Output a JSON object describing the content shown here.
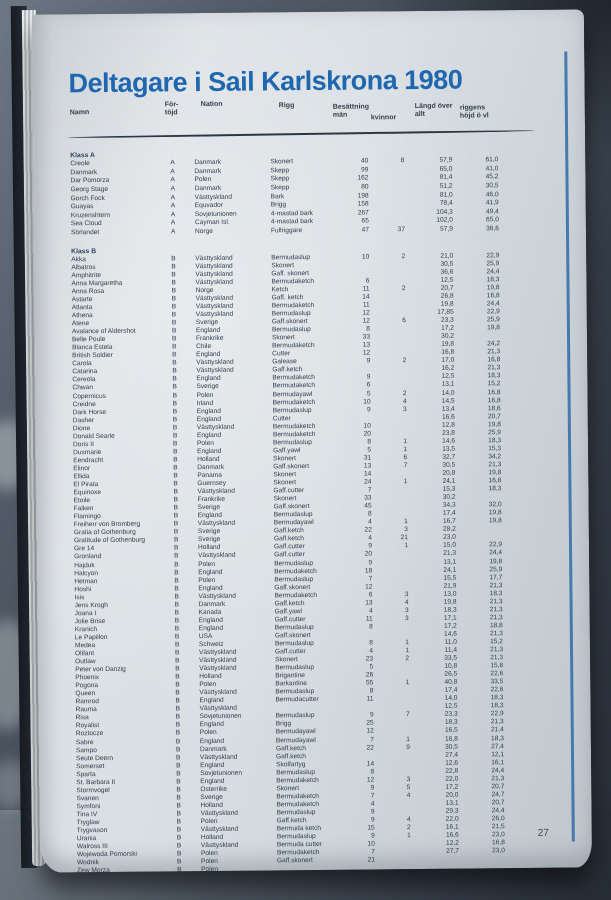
{
  "photo": {
    "background_color": "#434c57",
    "page_color": "#d8dee2",
    "accent_color": "#4879ad",
    "title_color": "#1f67af"
  },
  "page": {
    "title": "Deltagare i Sail Karlskrona 1980",
    "page_number": "27",
    "table": {
      "headers": {
        "namn": "Namn",
        "fortojd": "För-\ntöjd",
        "nation": "Nation",
        "rigg": "Rigg",
        "besattning": "Besättning\nmän",
        "kvinnor": "kvinnor",
        "langd": "Längd över\nallt",
        "riggens": "riggens\nhöjd ö vl"
      },
      "sections": [
        {
          "label": "Klass A",
          "rows": [
            [
              "Creole",
              "A",
              "Danmark",
              "Skonert",
              "40",
              "8",
              "57,9",
              "61,0"
            ],
            [
              "Danmark",
              "A",
              "Danmark",
              "Skepp",
              "99",
              "",
              "65,0",
              "41,0"
            ],
            [
              "Dar Pomorza",
              "A",
              "Polen",
              "Skepp",
              "162",
              "",
              "81,4",
              "45,2"
            ],
            [
              "Georg Stage",
              "A",
              "Danmark",
              "Skepp",
              "80",
              "",
              "51,2",
              "30,5"
            ],
            [
              "Gorch Fock",
              "A",
              "Västtyskland",
              "Bark",
              "198",
              "",
              "81,0",
              "46,0"
            ],
            [
              "Guayas",
              "A",
              "Equvador",
              "Brigg",
              "158",
              "",
              "78,4",
              "41,9"
            ],
            [
              "Kruzenshtern",
              "A",
              "Sovjetunionen",
              "4-mastad bark",
              "267",
              "",
              "104,3",
              "49,4"
            ],
            [
              "Sea Cloud",
              "A",
              "Cayman Isl.",
              "4-mastad bark",
              "65",
              "",
              "102,0",
              "65,0"
            ],
            [
              "Sörlandet",
              "A",
              "Norge",
              "Fullriggare",
              "47",
              "37",
              "57,9",
              "36,6"
            ]
          ]
        },
        {
          "label": "Klass B",
          "rows": [
            [
              "Akka",
              "B",
              "Västtyskland",
              "Bermudaslup",
              "10",
              "2",
              "21,0",
              "22,9"
            ],
            [
              "Albatros",
              "B",
              "Västtyskland",
              "Skonert",
              "",
              "",
              "30,5",
              "25,9"
            ],
            [
              "Amphitrite",
              "B",
              "Västtyskland",
              "Gaff. skonert",
              "",
              "",
              "36,6",
              "24,4"
            ],
            [
              "Anna Margaretha",
              "B",
              "Västtyskland",
              "Bermudaketch",
              "6",
              "",
              "12,5",
              "18,3"
            ],
            [
              "Anna Rosa",
              "B",
              "Norge",
              "Ketch",
              "11",
              "2",
              "20,7",
              "19,8"
            ],
            [
              "Astarte",
              "B",
              "Västtyskland",
              "Gaff. ketch",
              "14",
              "",
              "26,8",
              "16,8"
            ],
            [
              "Atlanta",
              "B",
              "Västtyskland",
              "Bermudaketch",
              "11",
              "",
              "19,8",
              "24,4"
            ],
            [
              "Athena",
              "B",
              "Västtyskland",
              "Bermudaslup",
              "12",
              "",
              "17,85",
              "22,9"
            ],
            [
              "Atene",
              "B",
              "Sverige",
              "Gaff.skonert",
              "12",
              "6",
              "23,3",
              "25,9"
            ],
            [
              "Avalance of Aldershot",
              "B",
              "England",
              "Bermudaslup",
              "8",
              "",
              "17,2",
              "19,8"
            ],
            [
              "Belle Poule",
              "B",
              "Frankrike",
              "Skonert",
              "33",
              "",
              "30,2",
              ""
            ],
            [
              "Blanca Estela",
              "B",
              "Chile",
              "Bermudaketch",
              "13",
              "",
              "19,8",
              "24,2"
            ],
            [
              "British Soldier",
              "B",
              "England",
              "Cutter",
              "12",
              "",
              "16,8",
              "21,3"
            ],
            [
              "Carola",
              "B",
              "Västtyskland",
              "Galease",
              "9",
              "2",
              "17,0",
              "16,8"
            ],
            [
              "Catarina",
              "B",
              "Västtyskland",
              "Gaff.ketch",
              "",
              "",
              "16,2",
              "21,3"
            ],
            [
              "Cereola",
              "B",
              "England",
              "Bermudaketch",
              "9",
              "",
              "12,5",
              "18,3"
            ],
            [
              "Chwan",
              "B",
              "Sverige",
              "Bermudaketch",
              "6",
              "",
              "13,1",
              "15,2"
            ],
            [
              "Copernicus",
              "B",
              "Polen",
              "Bermudayawl",
              "5",
              "2",
              "14,0",
              "16,8"
            ],
            [
              "Creidne",
              "B",
              "Irland",
              "Bermudaketch",
              "10",
              "4",
              "14,5",
              "16,8"
            ],
            [
              "Dark Horse",
              "B",
              "England",
              "Bermudaslup",
              "9",
              "3",
              "13,4",
              "18,6"
            ],
            [
              "Dasher",
              "B",
              "England",
              "Cutter",
              "",
              "",
              "16,6",
              "20,7"
            ],
            [
              "Dione",
              "B",
              "Västtyskland",
              "Bermudaketch",
              "10",
              "",
              "12,8",
              "19,8"
            ],
            [
              "Donald Searle",
              "B",
              "England",
              "Bermudaketch",
              "20",
              "",
              "23,8",
              "25,9"
            ],
            [
              "Doris II",
              "B",
              "Polen",
              "Bermudaslup",
              "8",
              "1",
              "14,6",
              "18,3"
            ],
            [
              "Dusmarie",
              "B",
              "England",
              "Gaff.yawl",
              "5",
              "1",
              "13,5",
              "15,3"
            ],
            [
              "Eendracht",
              "B",
              "Holland",
              "Skonert",
              "31",
              "6",
              "32,7",
              "34,2"
            ],
            [
              "Elinor",
              "B",
              "Danmark",
              "Gaff.skonert",
              "13",
              "7",
              "30,5",
              "21,3"
            ],
            [
              "Ellida",
              "B",
              "Panama",
              "Skonert",
              "14",
              "",
              "20,8",
              "19,8"
            ],
            [
              "El Pirata",
              "B",
              "Guernsey",
              "Skonert",
              "24",
              "1",
              "24,1",
              "16,8"
            ],
            [
              "Equinoxe",
              "B",
              "Västtyskland",
              "Gaff.cutter",
              "7",
              "",
              "15,3",
              "18,3"
            ],
            [
              "Etoile",
              "B",
              "Frankrike",
              "Skonert",
              "33",
              "",
              "30,2",
              ""
            ],
            [
              "Falken",
              "B",
              "Sverige",
              "Gaff.skonert",
              "45",
              "",
              "34,3",
              "32,0"
            ],
            [
              "Flamingo",
              "B",
              "England",
              "Bermudaslup",
              "8",
              "",
              "17,4",
              "19,8"
            ],
            [
              "Freiherr von Bromberg",
              "B",
              "Västtyskland",
              "Bermudayawl",
              "4",
              "1",
              "16,7",
              "19,8"
            ],
            [
              "Gratia of Gothenburg",
              "B",
              "Sverige",
              "Gaff.ketch",
              "22",
              "3",
              "28,2",
              ""
            ],
            [
              "Gratitude of Gothenburg",
              "B",
              "Sverige",
              "Gaff.ketch",
              "4",
              "21",
              "23,0",
              ""
            ],
            [
              "Gre 14",
              "B",
              "Holland",
              "Gaff.cutter",
              "9",
              "1",
              "15,0",
              "22,9"
            ],
            [
              "Gronland",
              "B",
              "Västtyskland",
              "Gaff.cutter",
              "20",
              "",
              "21,3",
              "24,4"
            ],
            [
              "Hajduk",
              "B",
              "Polen",
              "Bermudaslup",
              "9",
              "",
              "13,1",
              "19,8"
            ],
            [
              "Halcyon",
              "B",
              "England",
              "Bermudaketch",
              "18",
              "",
              "24,1",
              "25,9"
            ],
            [
              "Hetman",
              "B",
              "Polen",
              "Bermudaslup",
              "7",
              "",
              "15,5",
              "17,7"
            ],
            [
              "Hoshi",
              "B",
              "England",
              "Gaff.skonert",
              "12",
              "",
              "21,9",
              "21,3"
            ],
            [
              "Isis",
              "B",
              "Västtyskland",
              "Bermudaketch",
              "6",
              "3",
              "13,0",
              "18,3"
            ],
            [
              "Jens Krogh",
              "B",
              "Danmark",
              "Gaff.ketch",
              "13",
              "4",
              "19,8",
              "21,3"
            ],
            [
              "Joana I",
              "B",
              "Kanada",
              "Gaff.yawl",
              "4",
              "3",
              "18,3",
              "21,3"
            ],
            [
              "Jolie Brise",
              "B",
              "England",
              "Gaff.cutter",
              "11",
              "3",
              "17,1",
              "21,3"
            ],
            [
              "Kranich",
              "B",
              "England",
              "Bermudaslup",
              "8",
              "",
              "17,2",
              "18,8"
            ],
            [
              "Le Papillon",
              "B",
              "USA",
              "Gaff.skonert",
              "",
              "",
              "14,6",
              "21,3"
            ],
            [
              "Medea",
              "B",
              "Schweiz",
              "Bermudaslup",
              "8",
              "1",
              "11,0",
              "15,2"
            ],
            [
              "Olifant",
              "B",
              "Västtyskland",
              "Gaff.cutter",
              "4",
              "1",
              "11,4",
              "21,3"
            ],
            [
              "Outlaw",
              "B",
              "Västtyskland",
              "Skonert",
              "23",
              "2",
              "33,5",
              "21,3"
            ],
            [
              "Peter von Danzig",
              "B",
              "Västtyskland",
              "Bermudaslup",
              "5",
              "",
              "10,8",
              "15,8"
            ],
            [
              "Phoenix",
              "B",
              "Holland",
              "Brigantine",
              "26",
              "",
              "26,5",
              "22,6"
            ],
            [
              "Pogona",
              "B",
              "Polen",
              "Barkantine",
              "55",
              "1",
              "40,8",
              "33,5"
            ],
            [
              "Queen",
              "B",
              "Västtyskland",
              "Bermudaslup",
              "8",
              "",
              "17,4",
              "22,6"
            ],
            [
              "Ramrod",
              "B",
              "England",
              "Bermudacutter",
              "11",
              "",
              "14,0",
              "18,3"
            ],
            [
              "Rauma",
              "B",
              "Västtyskland",
              "",
              "",
              "",
              "12,5",
              "18,3"
            ],
            [
              "Risa",
              "B",
              "Sovjetunionen",
              "Bermudaslup",
              "9",
              "7",
              "23,3",
              "22,9"
            ],
            [
              "Royalist",
              "B",
              "England",
              "Brigg",
              "25",
              "",
              "18,3",
              "21,3"
            ],
            [
              "Roztocze",
              "B",
              "Polen",
              "Bermudayawl",
              "12",
              "",
              "16,5",
              "21,4"
            ],
            [
              "Sabre",
              "B",
              "England",
              "Bermudayawl",
              "7",
              "1",
              "16,8",
              "18,3"
            ],
            [
              "Sampo",
              "B",
              "Danmark",
              "Gaff.ketch",
              "22",
              "9",
              "30,5",
              "27,4"
            ],
            [
              "Seute Deern",
              "B",
              "Västtyskland",
              "Gaff.ketch",
              "",
              "",
              "27,4",
              "12,1"
            ],
            [
              "Somerset",
              "B",
              "England",
              "Skolfartyg",
              "14",
              "",
              "12,6",
              "16,1"
            ],
            [
              "Sparta",
              "B",
              "Sovjetunionen",
              "Bermudaslup",
              "8",
              "",
              "22,8",
              "24,4"
            ],
            [
              "St. Barbara II",
              "B",
              "England",
              "Bermudaketch",
              "12",
              "3",
              "22,0",
              "21,3"
            ],
            [
              "Stormvogel",
              "B",
              "Österrike",
              "Skonert",
              "9",
              "5",
              "17,2",
              "20,7"
            ],
            [
              "Svanen",
              "B",
              "Sverige",
              "Bermudaketch",
              "7",
              "4",
              "20,0",
              "24,7"
            ],
            [
              "Symfoni",
              "B",
              "Holland",
              "Bermudaketch",
              "4",
              "",
              "13,1",
              "20,7"
            ],
            [
              "Tina IV",
              "B",
              "Västtyskland",
              "Bermudaslup",
              "9",
              "",
              "29,3",
              "24,4"
            ],
            [
              "Tryglaw",
              "B",
              "Polen",
              "Gaff.ketch",
              "9",
              "4",
              "22,0",
              "26,0"
            ],
            [
              "Trygvason",
              "B",
              "Västtyskland",
              "Bermuda ketch",
              "15",
              "2",
              "16,1",
              "21,5"
            ],
            [
              "Urania",
              "B",
              "Holland",
              "Bermudaslup",
              "9",
              "1",
              "16,6",
              "23,0"
            ],
            [
              "Walross III",
              "B",
              "Västtyskland",
              "Bermuda cutter",
              "10",
              "",
              "12,2",
              "16,8"
            ],
            [
              "Wojewoda Pomorski",
              "B",
              "Polen",
              "Bermudaketch",
              "7",
              "",
              "27,7",
              "23,0"
            ],
            [
              "Wodnik",
              "B",
              "Polen",
              "Gaff.skonert",
              "21",
              "",
              "",
              ""
            ],
            [
              "Zew Morza",
              "B",
              "Polen",
              "",
              "",
              "",
              "",
              ""
            ]
          ]
        }
      ]
    }
  }
}
